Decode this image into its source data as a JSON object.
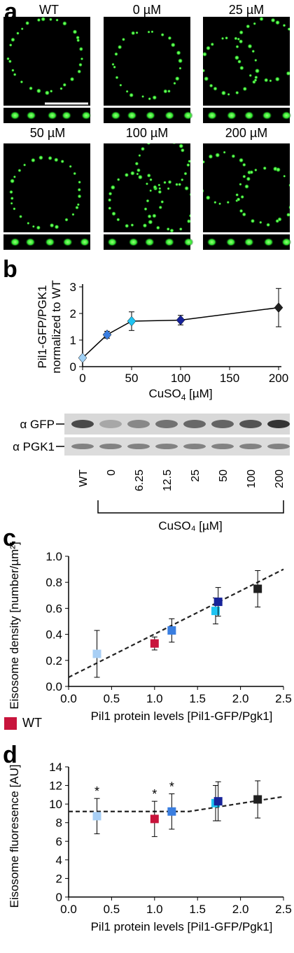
{
  "panel_a": {
    "letter": "a",
    "images": [
      {
        "label": "WT"
      },
      {
        "label": "0 µM"
      },
      {
        "label": "25 µM"
      },
      {
        "label": "50 µM"
      },
      {
        "label": "100 µM"
      },
      {
        "label": "200 µM"
      }
    ]
  },
  "panel_b": {
    "letter": "b",
    "blot": {
      "rows": [
        "α GFP",
        "α PGK1"
      ],
      "lanes": [
        "WT",
        "0",
        "6.25",
        "12.5",
        "25",
        "50",
        "100",
        "200"
      ],
      "bracket_label": "CuSO₄ [µM]"
    }
  },
  "panel_c": {
    "letter": "c",
    "legend_label": "WT",
    "legend_color": "#c8143c"
  },
  "panel_d": {
    "letter": "d"
  },
  "chart_data": [
    {
      "type": "line",
      "panel": "b",
      "ylabel_line1": "Pil1-GFP/PGK1",
      "ylabel_line2": "normalized to WT",
      "xlabel": "CuSO4 [µM]",
      "xlim": [
        0,
        200
      ],
      "ylim": [
        0,
        3
      ],
      "xticks": [
        0,
        50,
        100,
        150,
        200
      ],
      "yticks": [
        0,
        1,
        2,
        3
      ],
      "points": [
        {
          "x": 0,
          "y": 0.33,
          "err": 0.07,
          "color": "#9fd0f5"
        },
        {
          "x": 25,
          "y": 1.2,
          "err": 0.13,
          "color": "#3a7ee0"
        },
        {
          "x": 50,
          "y": 1.71,
          "err": 0.35,
          "color": "#1fc4f2"
        },
        {
          "x": 100,
          "y": 1.75,
          "err": 0.18,
          "color": "#17239a"
        },
        {
          "x": 200,
          "y": 2.22,
          "err": 0.72,
          "color": "#202020"
        }
      ]
    },
    {
      "type": "scatter",
      "panel": "c",
      "ylabel": "Eisosome density [number/µm²]",
      "xlabel": "Pil1 protein levels   [Pil1-GFP/Pgk1]",
      "xlim": [
        0,
        2.5
      ],
      "ylim": [
        0,
        1.0
      ],
      "xticks": [
        "0.0",
        "0.5",
        "1.0",
        "1.5",
        "2.0",
        "2.5"
      ],
      "yticks": [
        "0.0",
        "0.2",
        "0.4",
        "0.6",
        "0.8",
        "1.0"
      ],
      "points": [
        {
          "x": 0.33,
          "y": 0.25,
          "err": 0.18,
          "color": "#a8cff5"
        },
        {
          "x": 1.0,
          "y": 0.33,
          "err": 0.05,
          "color": "#c8143c"
        },
        {
          "x": 1.2,
          "y": 0.43,
          "err": 0.09,
          "color": "#3a7ee0"
        },
        {
          "x": 1.71,
          "y": 0.58,
          "err": 0.1,
          "color": "#1fc4f2"
        },
        {
          "x": 1.74,
          "y": 0.65,
          "err": 0.11,
          "color": "#17239a"
        },
        {
          "x": 2.2,
          "y": 0.75,
          "err": 0.14,
          "color": "#202020"
        }
      ],
      "fit": [
        [
          0,
          0.07
        ],
        [
          2.5,
          0.9
        ]
      ]
    },
    {
      "type": "scatter",
      "panel": "d",
      "ylabel": "Eisosome fluoresence [AU]",
      "xlabel": "Pil1 protein levels   [Pil1-GFP/Pgk1]",
      "xlim": [
        0,
        2.5
      ],
      "ylim": [
        0,
        14
      ],
      "xticks": [
        "0.0",
        "0.5",
        "1.0",
        "1.5",
        "2.0",
        "2.5"
      ],
      "yticks": [
        "0",
        "2",
        "4",
        "6",
        "8",
        "10",
        "12",
        "14"
      ],
      "points": [
        {
          "x": 0.33,
          "y": 8.7,
          "err": 1.9,
          "color": "#a8cff5",
          "star": "*"
        },
        {
          "x": 1.0,
          "y": 8.4,
          "err": 1.9,
          "color": "#c8143c",
          "star": "*"
        },
        {
          "x": 1.2,
          "y": 9.2,
          "err": 1.9,
          "color": "#3a7ee0",
          "star": "*"
        },
        {
          "x": 1.71,
          "y": 10.1,
          "err": 1.9,
          "color": "#1fc4f2"
        },
        {
          "x": 1.74,
          "y": 10.3,
          "err": 2.1,
          "color": "#17239a"
        },
        {
          "x": 2.2,
          "y": 10.5,
          "err": 2.0,
          "color": "#202020"
        }
      ],
      "fit": [
        [
          0,
          9.2
        ],
        [
          1.4,
          9.2
        ],
        [
          2.5,
          10.8
        ]
      ]
    }
  ]
}
